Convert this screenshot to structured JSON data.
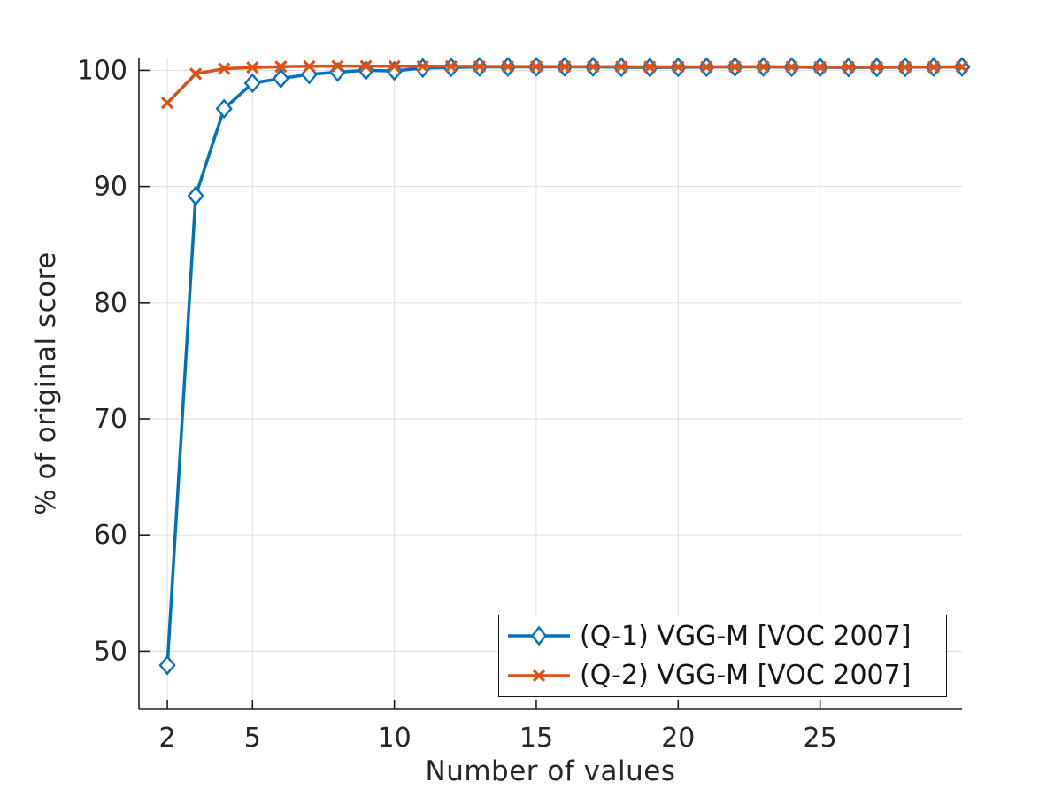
{
  "chart_data": {
    "type": "line",
    "title": "",
    "xlabel": "Number of values",
    "ylabel": "% of original score",
    "xlim": [
      1,
      30
    ],
    "ylim": [
      45,
      101.1
    ],
    "xticks": [
      2,
      5,
      10,
      15,
      20,
      25
    ],
    "yticks": [
      50,
      60,
      70,
      80,
      90,
      100
    ],
    "grid": true,
    "legend_position": "inside-bottom-right",
    "x": [
      2,
      3,
      4,
      5,
      6,
      7,
      8,
      9,
      10,
      11,
      12,
      13,
      14,
      15,
      16,
      17,
      18,
      19,
      20,
      21,
      22,
      23,
      24,
      25,
      26,
      27,
      28,
      29,
      30
    ],
    "series": [
      {
        "name": "(Q-1) VGG-M [VOC 2007]",
        "color": "#0072BD",
        "marker": "diamond",
        "values": [
          48.8,
          89.2,
          96.7,
          98.9,
          99.3,
          99.65,
          99.85,
          100.0,
          99.95,
          100.2,
          100.25,
          100.3,
          100.3,
          100.3,
          100.3,
          100.3,
          100.27,
          100.24,
          100.26,
          100.28,
          100.3,
          100.3,
          100.28,
          100.26,
          100.25,
          100.26,
          100.27,
          100.28,
          100.3
        ]
      },
      {
        "name": "(Q-2) VGG-M [VOC 2007]",
        "color": "#D95319",
        "marker": "x",
        "values": [
          97.2,
          99.7,
          100.15,
          100.25,
          100.32,
          100.35,
          100.37,
          100.37,
          100.36,
          100.35,
          100.35,
          100.34,
          100.33,
          100.33,
          100.32,
          100.32,
          100.31,
          100.3,
          100.3,
          100.3,
          100.31,
          100.31,
          100.3,
          100.28,
          100.28,
          100.28,
          100.28,
          100.29,
          100.3
        ]
      }
    ],
    "colors": {
      "grid": "#E2E2E2",
      "axis": "#1F1F1F",
      "tick_label": "#262626",
      "background": "#FFFFFF"
    }
  }
}
